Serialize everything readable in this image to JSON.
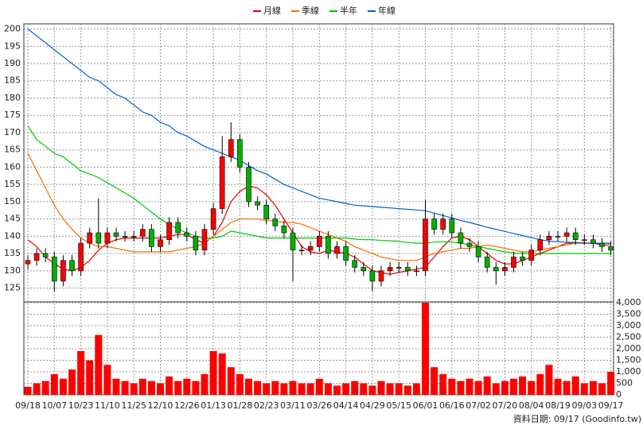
{
  "chart_data": {
    "type": "candlestick",
    "categories": [
      "09/18",
      null,
      null,
      "10/07",
      null,
      null,
      "10/23",
      null,
      null,
      "11/10",
      null,
      null,
      "11/25",
      null,
      null,
      "12/10",
      null,
      null,
      "12/26",
      null,
      null,
      "01/13",
      null,
      null,
      "01/28",
      null,
      null,
      "02/23",
      null,
      null,
      "03/11",
      null,
      null,
      "03/26",
      null,
      null,
      "04/14",
      null,
      null,
      "04/29",
      null,
      null,
      "05/15",
      null,
      null,
      "06/01",
      null,
      null,
      "06/16",
      null,
      null,
      "07/02",
      null,
      null,
      "07/20",
      null,
      null,
      "08/04",
      null,
      null,
      "08/19",
      null,
      null,
      "09/03",
      null,
      null,
      "09/17"
    ],
    "candles": {
      "up_color": "#ff0000",
      "down_color": "#00b000",
      "open": [
        132,
        133,
        135,
        134,
        127,
        133,
        130,
        138,
        141,
        138,
        141,
        140,
        140,
        140,
        142,
        137,
        139,
        144,
        141,
        140,
        136,
        142,
        148,
        163,
        168,
        160,
        150,
        149,
        145,
        143,
        141,
        136,
        136,
        137,
        140,
        135,
        137,
        133,
        131,
        130,
        127,
        130,
        131,
        131,
        130,
        130,
        145,
        142,
        145,
        141,
        138,
        137,
        134,
        131,
        130,
        131,
        134,
        133,
        136,
        139,
        140,
        140,
        141,
        139,
        139,
        138,
        137
      ],
      "high": [
        134.5,
        136.5,
        136.5,
        135.5,
        134.5,
        134.5,
        139.5,
        142.5,
        151,
        142.5,
        142.5,
        141.5,
        141.5,
        143.5,
        143.5,
        140.5,
        145.5,
        145.5,
        142.5,
        141.5,
        143.5,
        149.5,
        169,
        173,
        169.5,
        161.5,
        151.5,
        150.5,
        146.5,
        144.5,
        142.5,
        137.5,
        138.5,
        141.5,
        141.5,
        138.5,
        138.5,
        134.5,
        132.5,
        131.5,
        131.5,
        132.5,
        132.5,
        132.5,
        131.5,
        150.5,
        146.5,
        146.5,
        146.5,
        142.5,
        139.5,
        138.5,
        135.5,
        132.5,
        132.5,
        135.5,
        135.5,
        137.5,
        140.5,
        141.5,
        141.5,
        142.5,
        142.5,
        140.5,
        140.5,
        139.5,
        138.5
      ],
      "low": [
        130.5,
        131.5,
        132.5,
        124,
        125.5,
        128.5,
        128.5,
        136.5,
        136.5,
        136.5,
        138.5,
        138.5,
        138.5,
        138.5,
        135.5,
        135.5,
        137.5,
        139.5,
        138.5,
        134.5,
        134.5,
        140.5,
        146.5,
        161.5,
        158.5,
        148.5,
        147.5,
        143.5,
        141.5,
        139.5,
        127,
        134.5,
        134.5,
        135.5,
        133.5,
        133.5,
        131.5,
        129.5,
        128.5,
        124,
        125.5,
        128.5,
        129.5,
        128.5,
        128.5,
        128.5,
        140.5,
        140.5,
        139.5,
        136.5,
        135.5,
        132.5,
        129.5,
        126,
        128.5,
        129.5,
        131.5,
        131.5,
        134.5,
        137.5,
        138.5,
        138.5,
        137.5,
        137.5,
        136.5,
        135.5,
        134.5
      ],
      "close": [
        133,
        135,
        134,
        127,
        133,
        130,
        138,
        141,
        138,
        141,
        140,
        140,
        140,
        142,
        137,
        139,
        144,
        141,
        140,
        136,
        142,
        148,
        163,
        168,
        160,
        150,
        149,
        145,
        143,
        141,
        136,
        136,
        137,
        140,
        135,
        137,
        133,
        131,
        130,
        127,
        130,
        131,
        131,
        130,
        130,
        145,
        142,
        145,
        141,
        138,
        137,
        134,
        131,
        130,
        131,
        134,
        133,
        136,
        139,
        140,
        140,
        141,
        139,
        139,
        138,
        137,
        136
      ]
    },
    "series": [
      {
        "name": "月線",
        "color": "#e00000",
        "values": [
          139,
          137,
          134,
          132,
          130.5,
          130,
          131,
          133,
          136,
          138,
          139,
          139.5,
          139.5,
          139.5,
          139.5,
          139.5,
          140,
          140.5,
          140.5,
          139,
          138,
          140,
          144,
          150,
          153,
          154.5,
          154,
          152,
          149,
          145,
          141,
          137,
          135.5,
          135,
          136,
          135.5,
          135,
          134,
          132,
          130,
          129.5,
          129,
          129.5,
          130,
          130.5,
          131,
          134,
          137,
          139.5,
          140,
          139,
          137,
          135,
          133,
          132,
          132,
          133,
          134,
          135,
          136,
          137,
          138,
          138,
          138,
          138,
          137.5,
          137.5
        ]
      },
      {
        "name": "季線",
        "color": "#f07000",
        "values": [
          164,
          159,
          154,
          149,
          145,
          142,
          139.5,
          138,
          137,
          137,
          136.5,
          136,
          135.5,
          135.5,
          135.5,
          135.5,
          135.5,
          136,
          136.5,
          137,
          138,
          140,
          142,
          144,
          145,
          145,
          145,
          144.5,
          144.5,
          144,
          144,
          143.5,
          142.5,
          141.5,
          140.5,
          139.5,
          138.5,
          137,
          136,
          135,
          134,
          133.5,
          133,
          133,
          133,
          134,
          135,
          135.5,
          136,
          136.5,
          136.5,
          137,
          137.5,
          137,
          136.5,
          136,
          135.5,
          135.5,
          136,
          136.5,
          137,
          137.5,
          138,
          138,
          138,
          138,
          138
        ]
      },
      {
        "name": "半年",
        "color": "#00c800",
        "values": [
          172,
          168,
          166,
          164,
          163,
          161,
          159,
          158,
          157,
          155.5,
          154,
          152.5,
          151,
          149,
          147,
          145,
          143.5,
          142,
          141,
          140,
          139.5,
          139.5,
          140,
          141.5,
          141,
          140.5,
          140,
          139.5,
          139.5,
          139.5,
          139.5,
          139.5,
          139.5,
          139.5,
          139.5,
          139.5,
          139.5,
          139.2,
          139,
          139,
          138.8,
          138.7,
          138.5,
          138.2,
          138,
          138,
          138.3,
          138.4,
          138.3,
          138,
          137.5,
          137,
          136.5,
          136,
          135.5,
          135.2,
          135,
          135,
          135,
          135,
          135,
          135,
          135,
          135,
          135,
          135,
          135
        ]
      },
      {
        "name": "年線",
        "color": "#0060d0",
        "values": [
          200,
          198,
          196,
          194,
          192,
          190,
          188,
          186,
          185,
          183,
          181,
          180,
          178,
          176,
          175,
          173,
          172,
          170,
          169,
          167.5,
          166,
          165,
          164,
          163,
          162,
          160.5,
          159,
          158,
          156.5,
          155,
          154,
          153,
          152,
          151,
          150.5,
          150,
          149.5,
          149,
          148.8,
          148.6,
          148.4,
          148.2,
          148,
          147.8,
          147.6,
          147.4,
          146.7,
          146,
          145.3,
          144.6,
          144,
          143.3,
          142.6,
          142,
          141.4,
          140.8,
          140.2,
          139.6,
          139,
          138.6,
          138.4,
          138.3,
          138.2,
          138.1,
          138,
          138,
          138
        ]
      }
    ],
    "volume": {
      "color": "#ff0000",
      "values": [
        350,
        500,
        600,
        900,
        700,
        1100,
        1900,
        1500,
        2600,
        1300,
        700,
        600,
        500,
        700,
        600,
        500,
        800,
        600,
        700,
        600,
        900,
        1900,
        1800,
        1200,
        900,
        700,
        600,
        500,
        600,
        500,
        600,
        500,
        500,
        700,
        500,
        400,
        500,
        600,
        500,
        400,
        600,
        500,
        500,
        400,
        500,
        4000,
        1200,
        900,
        700,
        600,
        700,
        600,
        800,
        500,
        600,
        700,
        800,
        600,
        900,
        1300,
        700,
        600,
        800,
        500,
        600,
        500,
        1000
      ]
    },
    "ylim": [
      121,
      201.5
    ],
    "yticks": [
      125,
      130,
      135,
      140,
      145,
      150,
      155,
      160,
      165,
      170,
      175,
      180,
      185,
      190,
      195,
      200
    ],
    "y2lim": [
      0,
      4000
    ],
    "y2ticks": [
      0,
      500,
      {
        "value": 1000,
        "label": "1,000"
      },
      {
        "value": 1500,
        "label": "1,500"
      },
      {
        "value": 2000,
        "label": "2,000"
      },
      {
        "value": 2500,
        "label": "2,500"
      },
      {
        "value": 3000,
        "label": "3,000"
      },
      {
        "value": 3500,
        "label": "3,500"
      },
      {
        "value": 4000,
        "label": "4,000"
      }
    ],
    "grid": true,
    "footer": "資料日期: 09/17 (Goodinfo.tw)"
  }
}
